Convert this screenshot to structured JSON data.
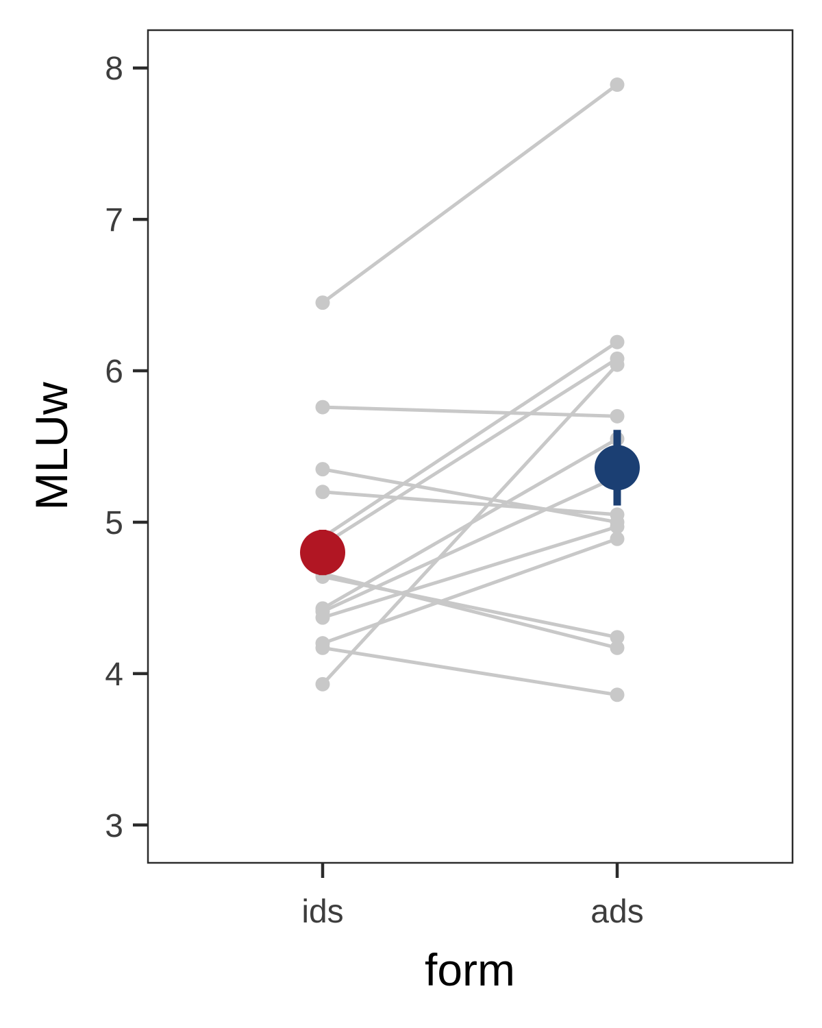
{
  "chart_data": {
    "type": "scatter",
    "xlabel": "form",
    "ylabel": "MLUw",
    "categories": [
      "ids",
      "ads"
    ],
    "yticks": [
      3,
      4,
      5,
      6,
      7,
      8
    ],
    "ylim": [
      2.75,
      8.25
    ],
    "grid": false,
    "legend": "none",
    "paired_lines": [
      {
        "ids": 6.45,
        "ads": 7.89
      },
      {
        "ids": 5.76,
        "ads": 5.7
      },
      {
        "ids": 5.35,
        "ads": 5.0
      },
      {
        "ids": 5.2,
        "ads": 5.05
      },
      {
        "ids": 4.9,
        "ads": 6.19
      },
      {
        "ids": 4.85,
        "ads": 6.08
      },
      {
        "ids": 4.64,
        "ads": 4.24
      },
      {
        "ids": 4.66,
        "ads": 4.17
      },
      {
        "ids": 4.43,
        "ads": 5.55
      },
      {
        "ids": 4.41,
        "ads": 5.3
      },
      {
        "ids": 4.37,
        "ads": 4.97
      },
      {
        "ids": 4.2,
        "ads": 4.89
      },
      {
        "ids": 4.17,
        "ads": 3.86
      },
      {
        "ids": 3.93,
        "ads": 6.04
      }
    ],
    "means": [
      {
        "category": "ids",
        "mean": 4.8,
        "lower": 4.65,
        "upper": 4.95,
        "color": "#b11623"
      },
      {
        "category": "ads",
        "mean": 5.36,
        "lower": 5.11,
        "upper": 5.61,
        "color": "#1b3f73"
      }
    ],
    "line_color": "#c8c8c8"
  }
}
